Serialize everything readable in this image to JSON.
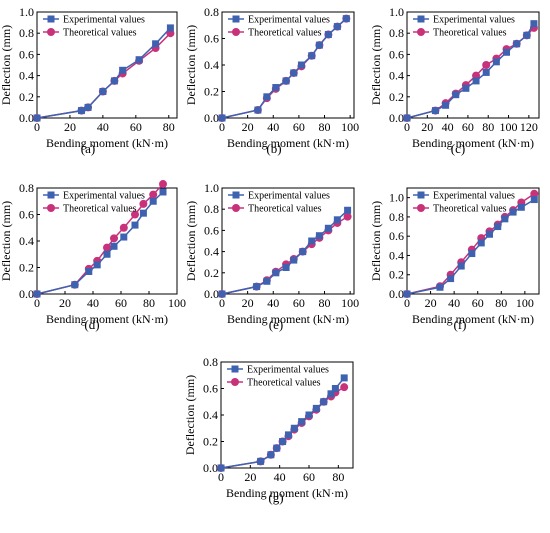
{
  "figure": {
    "colors": {
      "experimental": "#3F62B0",
      "theoretical": "#C8327A"
    }
  },
  "chart_data": [
    {
      "type": "line",
      "panel_label": "(a)",
      "xlabel": "Bending moment (kN·m)",
      "ylabel": "Deflection (mm)",
      "xlim": [
        0,
        85
      ],
      "ylim": [
        0,
        1.0
      ],
      "xticks": [
        0,
        20,
        40,
        60,
        80
      ],
      "yticks": [
        0.0,
        0.2,
        0.4,
        0.6,
        0.8,
        1.0
      ],
      "series": [
        {
          "name": "Experimental values",
          "marker": "square",
          "x": [
            0,
            27,
            31,
            40,
            47,
            52,
            62,
            72,
            81
          ],
          "y": [
            0,
            0.07,
            0.1,
            0.25,
            0.35,
            0.45,
            0.55,
            0.7,
            0.85
          ]
        },
        {
          "name": "Theoretical values",
          "marker": "circle",
          "x": [
            0,
            27,
            31,
            40,
            47,
            52,
            62,
            72,
            81
          ],
          "y": [
            0,
            0.07,
            0.1,
            0.25,
            0.35,
            0.42,
            0.54,
            0.66,
            0.8
          ]
        }
      ]
    },
    {
      "type": "line",
      "panel_label": "(b)",
      "xlabel": "Bending moment (kN·m)",
      "ylabel": "Deflection (mm)",
      "xlim": [
        0,
        103
      ],
      "ylim": [
        0,
        0.8
      ],
      "xticks": [
        0,
        20,
        40,
        60,
        80,
        100
      ],
      "yticks": [
        0.0,
        0.2,
        0.4,
        0.6,
        0.8
      ],
      "series": [
        {
          "name": "Experimental values",
          "marker": "square",
          "x": [
            0,
            28,
            35,
            42,
            50,
            56,
            62,
            70,
            76,
            83,
            90,
            97
          ],
          "y": [
            0,
            0.06,
            0.16,
            0.23,
            0.28,
            0.34,
            0.4,
            0.47,
            0.55,
            0.63,
            0.69,
            0.75
          ]
        },
        {
          "name": "Theoretical values",
          "marker": "circle",
          "x": [
            0,
            28,
            35,
            42,
            50,
            56,
            62,
            70,
            76,
            83,
            90,
            97
          ],
          "y": [
            0,
            0.06,
            0.15,
            0.22,
            0.28,
            0.34,
            0.39,
            0.47,
            0.55,
            0.63,
            0.69,
            0.75
          ]
        }
      ]
    },
    {
      "type": "line",
      "panel_label": "(c)",
      "xlabel": "Bending moment (kN·m)",
      "ylabel": "Deflection (mm)",
      "xlim": [
        0,
        130
      ],
      "ylim": [
        0,
        1.0
      ],
      "xticks": [
        0,
        20,
        40,
        60,
        80,
        100,
        120
      ],
      "yticks": [
        0.0,
        0.2,
        0.4,
        0.6,
        0.8,
        1.0
      ],
      "series": [
        {
          "name": "Experimental values",
          "marker": "square",
          "x": [
            0,
            28,
            38,
            48,
            58,
            68,
            78,
            88,
            98,
            108,
            118,
            125
          ],
          "y": [
            0,
            0.07,
            0.12,
            0.22,
            0.28,
            0.35,
            0.43,
            0.53,
            0.62,
            0.7,
            0.78,
            0.89
          ]
        },
        {
          "name": "Theoretical values",
          "marker": "circle",
          "x": [
            0,
            28,
            38,
            48,
            58,
            68,
            78,
            88,
            98,
            108,
            118,
            125
          ],
          "y": [
            0,
            0.07,
            0.14,
            0.23,
            0.31,
            0.4,
            0.5,
            0.56,
            0.65,
            0.7,
            0.78,
            0.85
          ]
        }
      ]
    },
    {
      "type": "line",
      "panel_label": "(d)",
      "xlabel": "Bending moment (kN·m)",
      "ylabel": "Deflection (mm)",
      "xlim": [
        0,
        100
      ],
      "ylim": [
        0,
        0.8
      ],
      "xticks": [
        0,
        20,
        40,
        60,
        80,
        100
      ],
      "yticks": [
        0.0,
        0.2,
        0.4,
        0.6,
        0.8
      ],
      "series": [
        {
          "name": "Experimental values",
          "marker": "square",
          "x": [
            0,
            27,
            37,
            43,
            50,
            55,
            62,
            70,
            76,
            83,
            90
          ],
          "y": [
            0,
            0.07,
            0.17,
            0.22,
            0.3,
            0.36,
            0.43,
            0.52,
            0.61,
            0.7,
            0.77
          ]
        },
        {
          "name": "Theoretical values",
          "marker": "circle",
          "x": [
            0,
            27,
            37,
            43,
            50,
            55,
            62,
            70,
            76,
            83,
            90
          ],
          "y": [
            0,
            0.07,
            0.19,
            0.25,
            0.35,
            0.42,
            0.5,
            0.6,
            0.68,
            0.75,
            0.83
          ]
        }
      ]
    },
    {
      "type": "line",
      "panel_label": "(e)",
      "xlabel": "Bending moment (kN·m)",
      "ylabel": "Deflection (mm)",
      "xlim": [
        0,
        103
      ],
      "ylim": [
        0,
        1.0
      ],
      "xticks": [
        0,
        20,
        40,
        60,
        80,
        100
      ],
      "yticks": [
        0.0,
        0.2,
        0.4,
        0.6,
        0.8,
        1.0
      ],
      "series": [
        {
          "name": "Experimental values",
          "marker": "square",
          "x": [
            0,
            27,
            35,
            42,
            50,
            56,
            63,
            70,
            76,
            83,
            90,
            98
          ],
          "y": [
            0,
            0.07,
            0.12,
            0.2,
            0.25,
            0.32,
            0.4,
            0.5,
            0.55,
            0.62,
            0.7,
            0.79
          ]
        },
        {
          "name": "Theoretical values",
          "marker": "circle",
          "x": [
            0,
            27,
            35,
            42,
            50,
            56,
            63,
            70,
            76,
            83,
            90,
            98
          ],
          "y": [
            0,
            0.07,
            0.13,
            0.21,
            0.28,
            0.33,
            0.4,
            0.47,
            0.53,
            0.6,
            0.67,
            0.73
          ]
        }
      ]
    },
    {
      "type": "line",
      "panel_label": "(f)",
      "xlabel": "Bending moment (kN·m)",
      "ylabel": "Deflection (mm)",
      "xlim": [
        0,
        112
      ],
      "ylim": [
        0,
        1.1
      ],
      "xticks": [
        0,
        20,
        40,
        60,
        80,
        100
      ],
      "yticks": [
        0.0,
        0.2,
        0.4,
        0.6,
        0.8,
        1.0
      ],
      "series": [
        {
          "name": "Experimental values",
          "marker": "square",
          "x": [
            0,
            28,
            37,
            46,
            55,
            63,
            70,
            77,
            83,
            90,
            97,
            108
          ],
          "y": [
            0,
            0.07,
            0.16,
            0.29,
            0.42,
            0.53,
            0.62,
            0.7,
            0.78,
            0.85,
            0.9,
            0.98
          ]
        },
        {
          "name": "Theoretical values",
          "marker": "circle",
          "x": [
            0,
            28,
            37,
            46,
            55,
            63,
            70,
            77,
            83,
            90,
            97,
            108
          ],
          "y": [
            0,
            0.08,
            0.2,
            0.33,
            0.46,
            0.58,
            0.65,
            0.72,
            0.8,
            0.87,
            0.95,
            1.04
          ]
        }
      ]
    },
    {
      "type": "line",
      "panel_label": "(g)",
      "xlabel": "Bending moment (kN·m)",
      "ylabel": "Deflection (mm)",
      "xlim": [
        0,
        90
      ],
      "ylim": [
        0,
        0.8
      ],
      "xticks": [
        0,
        20,
        40,
        60,
        80
      ],
      "yticks": [
        0.0,
        0.2,
        0.4,
        0.6,
        0.8
      ],
      "series": [
        {
          "name": "Experimental values",
          "marker": "square",
          "x": [
            0,
            27,
            34,
            38,
            42,
            46,
            50,
            55,
            60,
            65,
            70,
            75,
            78,
            84
          ],
          "y": [
            0,
            0.05,
            0.1,
            0.15,
            0.2,
            0.25,
            0.3,
            0.35,
            0.4,
            0.45,
            0.5,
            0.56,
            0.6,
            0.68
          ]
        },
        {
          "name": "Theoretical values",
          "marker": "circle",
          "x": [
            0,
            27,
            34,
            38,
            42,
            46,
            50,
            55,
            60,
            65,
            70,
            75,
            78,
            84
          ],
          "y": [
            0,
            0.05,
            0.1,
            0.15,
            0.2,
            0.24,
            0.29,
            0.34,
            0.39,
            0.44,
            0.5,
            0.54,
            0.57,
            0.61
          ]
        }
      ]
    }
  ]
}
